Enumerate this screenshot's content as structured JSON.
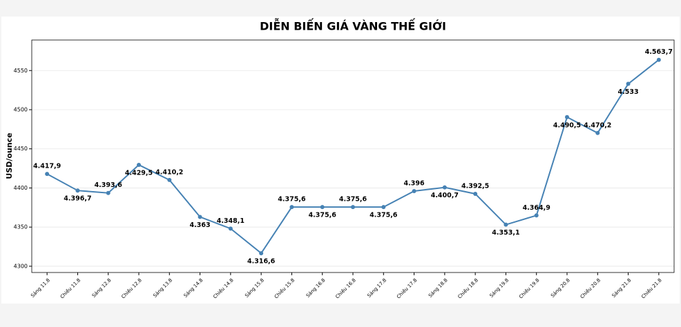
{
  "chart_data": {
    "type": "line",
    "title": "DIỄN BIẾN GIÁ VÀNG THẾ GIỚI",
    "y_label": "USD/ounce",
    "categories": [
      "Sáng 11.8",
      "Chiều 11.8",
      "Sáng 12.8",
      "Chiều 12.8",
      "Sáng 13.8",
      "Sáng 14.8",
      "Chiều 14.8",
      "Sáng 15.8",
      "Chiều 15.8",
      "Sáng 16.8",
      "Chiều 16.8",
      "Sáng 17.8",
      "Chiều 17.8",
      "Sáng 18.8",
      "Chiều 18.8",
      "Sáng 19.8",
      "Chiều 19.8",
      "Sáng 20.8",
      "Chiều 20.8",
      "Sáng 21.8",
      "Chiều 21.8"
    ],
    "values": [
      4417.9,
      4396.7,
      4393.6,
      4429.5,
      4410.2,
      4363,
      4348.1,
      4316.6,
      4375.6,
      4375.6,
      4375.6,
      4375.6,
      4396,
      4400.7,
      4392.5,
      4353.1,
      4364.9,
      4490.5,
      4470.2,
      4533,
      4563.7
    ],
    "value_labels": [
      "4.417,9",
      "4.396,7",
      "4.393,6",
      "4.429,5",
      "4.410,2",
      "4.363",
      "4.348,1",
      "4.316,6",
      "4.375,6",
      "4.375,6",
      "4.375,6",
      "4.375,6",
      "4.396",
      "4.400,7",
      "4.392,5",
      "4.353,1",
      "4.364,9",
      "4.490,5",
      "4.470,2",
      "4.533",
      "4.563,7"
    ],
    "color": "#4682b4",
    "ylim": [
      4292,
      4589
    ],
    "yticks": [
      4300,
      4350,
      4400,
      4450,
      4500,
      4550
    ],
    "grid": true
  }
}
